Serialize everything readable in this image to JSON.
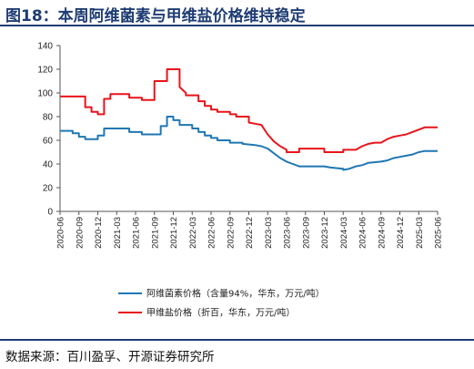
{
  "header": {
    "title": "图18：本周阿维菌素与甲维盐价格维持稳定"
  },
  "footer": {
    "source": "数据来源：百川盈孚、开源证券研究所"
  },
  "chart_data": {
    "type": "line",
    "title": "",
    "xlabel": "",
    "ylabel": "",
    "ylim": [
      0,
      140
    ],
    "yticks": [
      0,
      20,
      40,
      60,
      80,
      100,
      120,
      140
    ],
    "xlim": [
      "2020-06",
      "2025-06"
    ],
    "xticks": [
      "2020-06",
      "2020-09",
      "2020-12",
      "2021-03",
      "2021-06",
      "2021-09",
      "2021-12",
      "2022-03",
      "2022-06",
      "2022-09",
      "2022-12",
      "2023-03",
      "2023-06",
      "2023-09",
      "2023-12",
      "2024-03",
      "2024-06",
      "2024-09",
      "2024-12",
      "2025-03",
      "2025-06"
    ],
    "grid": false,
    "legend_position": "bottom",
    "series": [
      {
        "name": "阿维菌素价格（含量94%，华东，万元/吨）",
        "color": "#1f77b4",
        "points": [
          [
            "2020-06",
            68
          ],
          [
            "2020-08",
            68
          ],
          [
            "2020-08",
            66
          ],
          [
            "2020-09",
            66
          ],
          [
            "2020-09",
            63
          ],
          [
            "2020-10",
            63
          ],
          [
            "2020-10",
            61
          ],
          [
            "2020-12",
            61
          ],
          [
            "2020-12",
            64
          ],
          [
            "2021-01",
            64
          ],
          [
            "2021-01",
            70
          ],
          [
            "2021-05",
            70
          ],
          [
            "2021-05",
            67
          ],
          [
            "2021-07",
            67
          ],
          [
            "2021-07",
            65
          ],
          [
            "2021-10",
            65
          ],
          [
            "2021-10",
            72
          ],
          [
            "2021-11",
            72
          ],
          [
            "2021-11",
            80
          ],
          [
            "2021-12",
            80
          ],
          [
            "2021-12",
            77
          ],
          [
            "2022-01",
            77
          ],
          [
            "2022-01",
            73
          ],
          [
            "2022-03",
            73
          ],
          [
            "2022-03",
            70
          ],
          [
            "2022-04",
            70
          ],
          [
            "2022-04",
            67
          ],
          [
            "2022-05",
            67
          ],
          [
            "2022-05",
            64
          ],
          [
            "2022-06",
            64
          ],
          [
            "2022-06",
            62
          ],
          [
            "2022-07",
            62
          ],
          [
            "2022-07",
            60
          ],
          [
            "2022-09",
            60
          ],
          [
            "2022-09",
            58
          ],
          [
            "2022-11",
            58
          ],
          [
            "2022-11",
            57
          ],
          [
            "2023-01",
            56
          ],
          [
            "2023-02",
            55
          ],
          [
            "2023-03",
            53
          ],
          [
            "2023-04",
            49
          ],
          [
            "2023-05",
            45
          ],
          [
            "2023-06",
            42
          ],
          [
            "2023-07",
            40
          ],
          [
            "2023-08",
            38
          ],
          [
            "2023-12",
            38
          ],
          [
            "2024-01",
            37
          ],
          [
            "2024-03",
            36
          ],
          [
            "2024-03",
            35
          ],
          [
            "2024-04",
            36
          ],
          [
            "2024-05",
            38
          ],
          [
            "2024-06",
            39
          ],
          [
            "2024-07",
            41
          ],
          [
            "2024-09",
            42
          ],
          [
            "2024-10",
            43
          ],
          [
            "2024-11",
            45
          ],
          [
            "2024-12",
            46
          ],
          [
            "2025-01",
            47
          ],
          [
            "2025-02",
            48
          ],
          [
            "2025-03",
            50
          ],
          [
            "2025-04",
            51
          ],
          [
            "2025-06",
            51
          ]
        ]
      },
      {
        "name": "甲维盐价格（折百，华东，万元/吨）",
        "color": "#e8141b",
        "points": [
          [
            "2020-06",
            97
          ],
          [
            "2020-10",
            97
          ],
          [
            "2020-10",
            88
          ],
          [
            "2020-11",
            88
          ],
          [
            "2020-11",
            84
          ],
          [
            "2020-12",
            84
          ],
          [
            "2020-12",
            82
          ],
          [
            "2021-01",
            82
          ],
          [
            "2021-01",
            95
          ],
          [
            "2021-02",
            95
          ],
          [
            "2021-02",
            99
          ],
          [
            "2021-05",
            99
          ],
          [
            "2021-05",
            96
          ],
          [
            "2021-07",
            96
          ],
          [
            "2021-07",
            94
          ],
          [
            "2021-09",
            94
          ],
          [
            "2021-09",
            110
          ],
          [
            "2021-11",
            110
          ],
          [
            "2021-11",
            120
          ],
          [
            "2022-01",
            120
          ],
          [
            "2022-01",
            105
          ],
          [
            "2022-02",
            100
          ],
          [
            "2022-02",
            98
          ],
          [
            "2022-04",
            98
          ],
          [
            "2022-04",
            93
          ],
          [
            "2022-05",
            93
          ],
          [
            "2022-05",
            89
          ],
          [
            "2022-06",
            89
          ],
          [
            "2022-06",
            86
          ],
          [
            "2022-07",
            86
          ],
          [
            "2022-07",
            84
          ],
          [
            "2022-09",
            84
          ],
          [
            "2022-09",
            82
          ],
          [
            "2022-10",
            82
          ],
          [
            "2022-10",
            80
          ],
          [
            "2022-12",
            80
          ],
          [
            "2022-12",
            75
          ],
          [
            "2023-01",
            74
          ],
          [
            "2023-02",
            73
          ],
          [
            "2023-03",
            65
          ],
          [
            "2023-04",
            59
          ],
          [
            "2023-05",
            55
          ],
          [
            "2023-06",
            52
          ],
          [
            "2023-06",
            50
          ],
          [
            "2023-08",
            50
          ],
          [
            "2023-08",
            53
          ],
          [
            "2023-12",
            53
          ],
          [
            "2023-12",
            50
          ],
          [
            "2024-03",
            50
          ],
          [
            "2024-03",
            52
          ],
          [
            "2024-05",
            52
          ],
          [
            "2024-06",
            55
          ],
          [
            "2024-07",
            57
          ],
          [
            "2024-08",
            58
          ],
          [
            "2024-09",
            58
          ],
          [
            "2024-10",
            61
          ],
          [
            "2024-11",
            63
          ],
          [
            "2024-12",
            64
          ],
          [
            "2025-01",
            65
          ],
          [
            "2025-02",
            67
          ],
          [
            "2025-03",
            69
          ],
          [
            "2025-04",
            71
          ],
          [
            "2025-06",
            71
          ]
        ]
      }
    ]
  }
}
